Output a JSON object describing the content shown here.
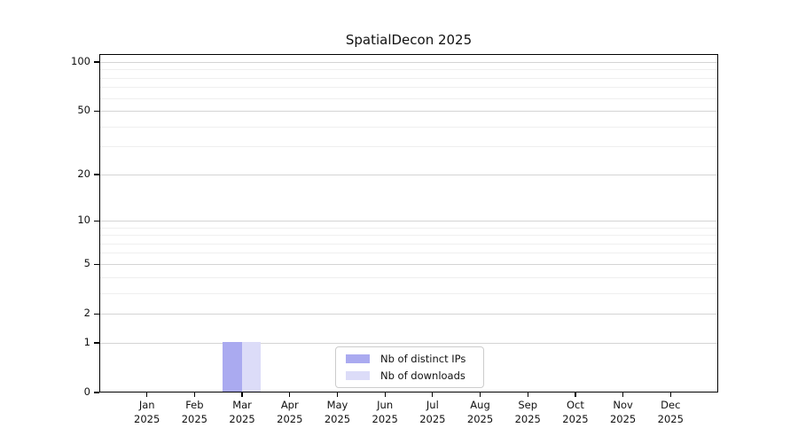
{
  "chart_data": {
    "type": "bar",
    "title": "SpatialDecon 2025",
    "categories": [
      [
        "Jan",
        "2025"
      ],
      [
        "Feb",
        "2025"
      ],
      [
        "Mar",
        "2025"
      ],
      [
        "Apr",
        "2025"
      ],
      [
        "May",
        "2025"
      ],
      [
        "Jun",
        "2025"
      ],
      [
        "Jul",
        "2025"
      ],
      [
        "Aug",
        "2025"
      ],
      [
        "Sep",
        "2025"
      ],
      [
        "Oct",
        "2025"
      ],
      [
        "Nov",
        "2025"
      ],
      [
        "Dec",
        "2025"
      ]
    ],
    "series": [
      {
        "name": "Nb of distinct IPs",
        "color": "#aaaaf0",
        "values": [
          0,
          0,
          1,
          0,
          0,
          0,
          0,
          0,
          0,
          0,
          0,
          0
        ]
      },
      {
        "name": "Nb of downloads",
        "color": "#dcdcf8",
        "values": [
          0,
          0,
          1,
          0,
          0,
          0,
          0,
          0,
          0,
          0,
          0,
          0
        ]
      }
    ],
    "xlabel": "",
    "ylabel": "",
    "y_axis": {
      "scale": "log1p",
      "major_ticks": [
        0,
        1,
        2,
        5,
        10,
        20,
        50,
        100
      ],
      "minor_ticks": [
        3,
        4,
        6,
        7,
        8,
        9,
        30,
        40,
        60,
        70,
        80,
        90
      ],
      "range_top_value": 112
    },
    "grid": {
      "enabled": true,
      "major_color": "#d4d4d4",
      "minor_color": "#efefef"
    },
    "legend_position": "bottom-center"
  }
}
